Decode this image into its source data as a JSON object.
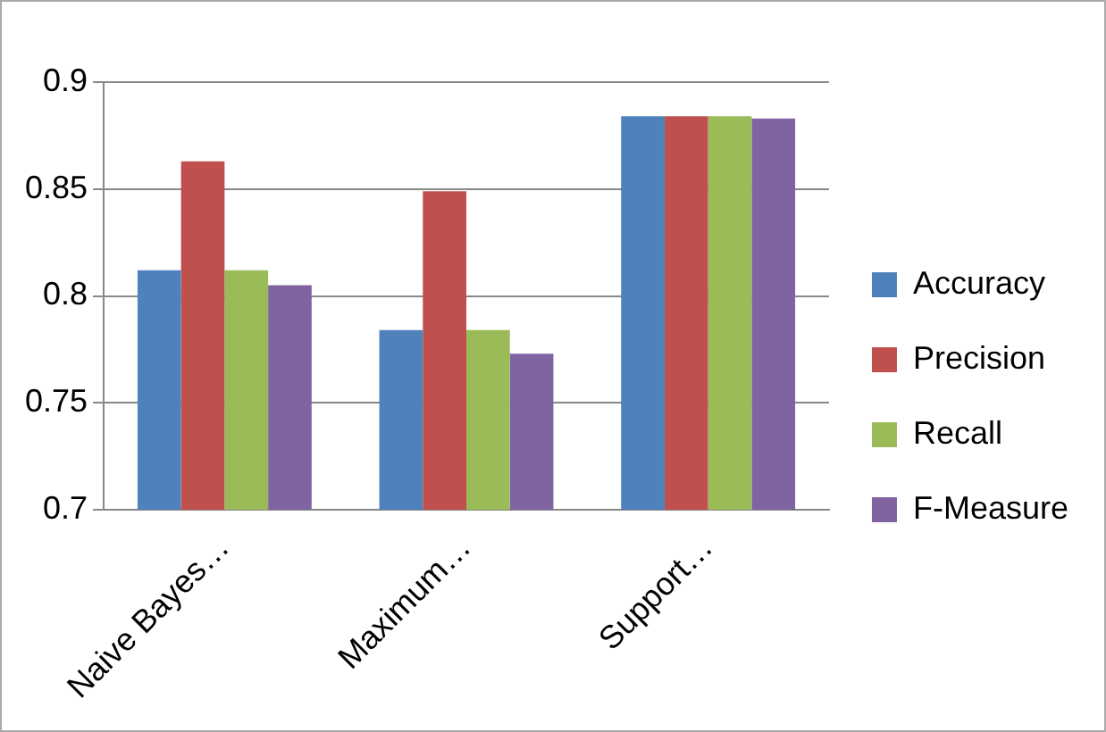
{
  "chart_data": {
    "type": "bar",
    "categories": [
      "Naive Bayes…",
      "Maximum…",
      "Support…"
    ],
    "series": [
      {
        "name": "Accuracy",
        "color": "#4f81bd",
        "values": [
          0.812,
          0.784,
          0.884
        ]
      },
      {
        "name": "Precision",
        "color": "#c0504d",
        "values": [
          0.863,
          0.849,
          0.884
        ]
      },
      {
        "name": "Recall",
        "color": "#9bbb59",
        "values": [
          0.812,
          0.784,
          0.884
        ]
      },
      {
        "name": "F-Measure",
        "color": "#8064a2",
        "values": [
          0.805,
          0.773,
          0.883
        ]
      }
    ],
    "ylim": [
      0.7,
      0.9
    ],
    "yticks": [
      0.7,
      0.75,
      0.8,
      0.85,
      0.9
    ],
    "grid": "y",
    "legend": "right"
  }
}
